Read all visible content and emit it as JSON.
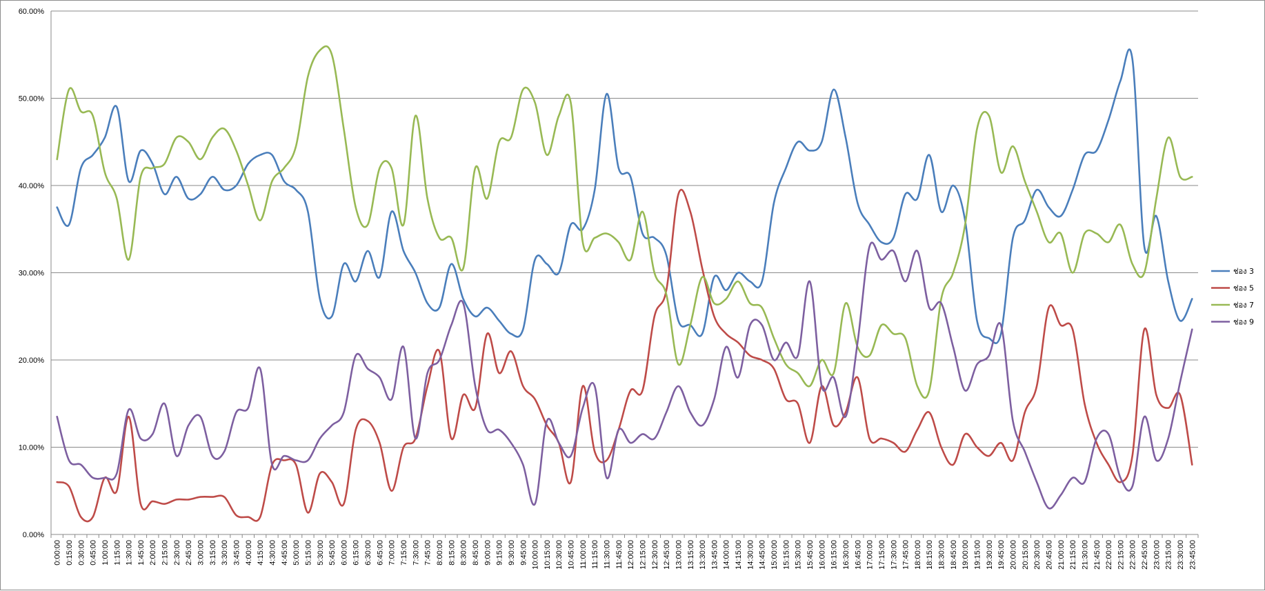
{
  "chart_data": {
    "type": "line",
    "title": "",
    "xlabel": "",
    "ylabel": "",
    "ylim": [
      0,
      0.6
    ],
    "y_ticks": [
      "0.00%",
      "10.00%",
      "20.00%",
      "30.00%",
      "40.00%",
      "50.00%",
      "60.00%"
    ],
    "grid": true,
    "legend_position": "right",
    "x": [
      "0:00:00",
      "0:15:00",
      "0:30:00",
      "0:45:00",
      "1:00:00",
      "1:15:00",
      "1:30:00",
      "1:45:00",
      "2:00:00",
      "2:15:00",
      "2:30:00",
      "2:45:00",
      "3:00:00",
      "3:15:00",
      "3:30:00",
      "3:45:00",
      "4:00:00",
      "4:15:00",
      "4:30:00",
      "4:45:00",
      "5:00:00",
      "5:15:00",
      "5:30:00",
      "5:45:00",
      "6:00:00",
      "6:15:00",
      "6:30:00",
      "6:45:00",
      "7:00:00",
      "7:15:00",
      "7:30:00",
      "7:45:00",
      "8:00:00",
      "8:15:00",
      "8:30:00",
      "8:45:00",
      "9:00:00",
      "9:15:00",
      "9:30:00",
      "9:45:00",
      "10:00:00",
      "10:15:00",
      "10:30:00",
      "10:45:00",
      "11:00:00",
      "11:15:00",
      "11:30:00",
      "11:45:00",
      "12:00:00",
      "12:15:00",
      "12:30:00",
      "12:45:00",
      "13:00:00",
      "13:15:00",
      "13:30:00",
      "13:45:00",
      "14:00:00",
      "14:15:00",
      "14:30:00",
      "14:45:00",
      "15:00:00",
      "15:15:00",
      "15:30:00",
      "15:45:00",
      "16:00:00",
      "16:15:00",
      "16:30:00",
      "16:45:00",
      "17:00:00",
      "17:15:00",
      "17:30:00",
      "17:45:00",
      "18:00:00",
      "18:15:00",
      "18:30:00",
      "18:45:00",
      "19:00:00",
      "19:15:00",
      "19:30:00",
      "19:45:00",
      "20:00:00",
      "20:15:00",
      "20:30:00",
      "20:45:00",
      "21:00:00",
      "21:15:00",
      "21:30:00",
      "21:45:00",
      "22:00:00",
      "22:15:00",
      "22:30:00",
      "22:45:00",
      "23:00:00",
      "23:15:00",
      "23:30:00",
      "23:45:00"
    ],
    "series": [
      {
        "name": "ช่อง 3",
        "color": "#4a7ebb",
        "values": [
          0.375,
          0.355,
          0.42,
          0.435,
          0.455,
          0.49,
          0.405,
          0.44,
          0.425,
          0.39,
          0.41,
          0.385,
          0.39,
          0.41,
          0.395,
          0.4,
          0.425,
          0.435,
          0.435,
          0.405,
          0.395,
          0.37,
          0.27,
          0.25,
          0.31,
          0.29,
          0.325,
          0.295,
          0.37,
          0.325,
          0.3,
          0.265,
          0.26,
          0.31,
          0.27,
          0.25,
          0.26,
          0.245,
          0.23,
          0.235,
          0.315,
          0.31,
          0.3,
          0.355,
          0.35,
          0.395,
          0.505,
          0.42,
          0.41,
          0.345,
          0.34,
          0.32,
          0.245,
          0.24,
          0.23,
          0.295,
          0.28,
          0.3,
          0.29,
          0.29,
          0.38,
          0.42,
          0.45,
          0.44,
          0.45,
          0.51,
          0.455,
          0.38,
          0.355,
          0.335,
          0.34,
          0.39,
          0.385,
          0.435,
          0.37,
          0.4,
          0.36,
          0.245,
          0.225,
          0.23,
          0.34,
          0.36,
          0.395,
          0.375,
          0.365,
          0.395,
          0.435,
          0.44,
          0.475,
          0.52,
          0.545,
          0.33,
          0.365,
          0.29,
          0.245,
          0.27
        ]
      },
      {
        "name": "ช่อง 5",
        "color": "#be4b48",
        "values": [
          0.06,
          0.055,
          0.02,
          0.02,
          0.065,
          0.05,
          0.135,
          0.035,
          0.038,
          0.035,
          0.04,
          0.04,
          0.043,
          0.043,
          0.043,
          0.022,
          0.02,
          0.02,
          0.08,
          0.085,
          0.08,
          0.025,
          0.07,
          0.06,
          0.035,
          0.12,
          0.13,
          0.105,
          0.05,
          0.1,
          0.11,
          0.17,
          0.21,
          0.11,
          0.16,
          0.145,
          0.23,
          0.185,
          0.21,
          0.17,
          0.155,
          0.125,
          0.105,
          0.06,
          0.17,
          0.095,
          0.085,
          0.12,
          0.165,
          0.165,
          0.25,
          0.28,
          0.39,
          0.37,
          0.305,
          0.25,
          0.23,
          0.22,
          0.205,
          0.2,
          0.19,
          0.155,
          0.15,
          0.105,
          0.17,
          0.125,
          0.14,
          0.18,
          0.11,
          0.11,
          0.105,
          0.095,
          0.12,
          0.14,
          0.1,
          0.08,
          0.115,
          0.1,
          0.09,
          0.105,
          0.085,
          0.14,
          0.17,
          0.26,
          0.24,
          0.235,
          0.15,
          0.105,
          0.08,
          0.06,
          0.09,
          0.235,
          0.16,
          0.145,
          0.16,
          0.08
        ]
      },
      {
        "name": "ช่อง 7",
        "color": "#98b954",
        "values": [
          0.43,
          0.51,
          0.485,
          0.48,
          0.415,
          0.385,
          0.315,
          0.41,
          0.42,
          0.425,
          0.455,
          0.45,
          0.43,
          0.455,
          0.465,
          0.44,
          0.4,
          0.36,
          0.405,
          0.42,
          0.445,
          0.525,
          0.555,
          0.55,
          0.465,
          0.375,
          0.355,
          0.42,
          0.42,
          0.355,
          0.48,
          0.385,
          0.34,
          0.34,
          0.305,
          0.42,
          0.385,
          0.45,
          0.455,
          0.51,
          0.495,
          0.435,
          0.48,
          0.495,
          0.335,
          0.34,
          0.345,
          0.335,
          0.315,
          0.37,
          0.3,
          0.275,
          0.195,
          0.24,
          0.295,
          0.265,
          0.27,
          0.29,
          0.265,
          0.26,
          0.225,
          0.195,
          0.185,
          0.17,
          0.2,
          0.185,
          0.265,
          0.215,
          0.205,
          0.24,
          0.23,
          0.225,
          0.17,
          0.165,
          0.27,
          0.3,
          0.355,
          0.465,
          0.48,
          0.415,
          0.445,
          0.405,
          0.37,
          0.335,
          0.345,
          0.3,
          0.345,
          0.345,
          0.335,
          0.355,
          0.31,
          0.3,
          0.385,
          0.455,
          0.41,
          0.41
        ]
      },
      {
        "name": "ช่อง 9",
        "color": "#7d5fa0",
        "values": [
          0.135,
          0.085,
          0.08,
          0.065,
          0.065,
          0.07,
          0.143,
          0.11,
          0.115,
          0.15,
          0.09,
          0.125,
          0.135,
          0.09,
          0.095,
          0.14,
          0.145,
          0.19,
          0.08,
          0.09,
          0.085,
          0.085,
          0.11,
          0.125,
          0.14,
          0.205,
          0.19,
          0.18,
          0.155,
          0.215,
          0.11,
          0.185,
          0.2,
          0.24,
          0.265,
          0.17,
          0.12,
          0.12,
          0.105,
          0.08,
          0.035,
          0.13,
          0.105,
          0.09,
          0.145,
          0.17,
          0.065,
          0.12,
          0.105,
          0.115,
          0.11,
          0.14,
          0.17,
          0.14,
          0.125,
          0.155,
          0.215,
          0.18,
          0.24,
          0.24,
          0.2,
          0.22,
          0.205,
          0.29,
          0.17,
          0.18,
          0.135,
          0.22,
          0.33,
          0.315,
          0.325,
          0.29,
          0.325,
          0.26,
          0.265,
          0.215,
          0.165,
          0.195,
          0.205,
          0.24,
          0.13,
          0.095,
          0.06,
          0.03,
          0.045,
          0.065,
          0.06,
          0.11,
          0.115,
          0.065,
          0.055,
          0.135,
          0.085,
          0.11,
          0.175,
          0.235
        ]
      }
    ]
  }
}
